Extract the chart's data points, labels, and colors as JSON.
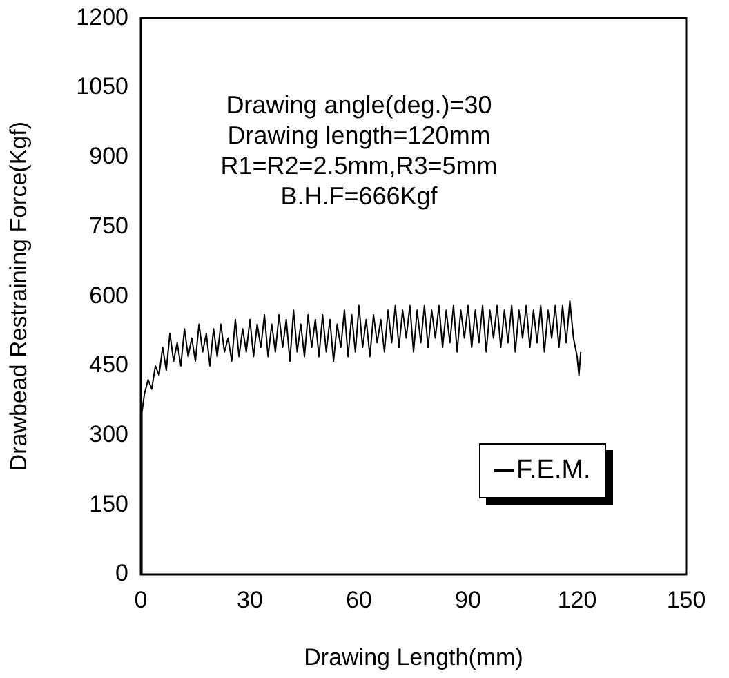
{
  "chart_data": {
    "type": "line",
    "xlabel": "Drawing Length(mm)",
    "ylabel": "Drawbead Restraining Force(Kgf)",
    "annotations": [
      "Drawing angle(deg.)=30",
      "Drawing length=120mm",
      "R1=R2=2.5mm,R3=5mm",
      "B.H.F=666Kgf"
    ],
    "xlim": [
      0,
      150
    ],
    "xticks": [
      0,
      30,
      60,
      90,
      120,
      150
    ],
    "ylim": [
      0,
      1200
    ],
    "yticks": [
      0,
      150,
      300,
      450,
      600,
      750,
      900,
      1050,
      1200
    ],
    "grid": false,
    "legend": "bottom right",
    "marker": "none",
    "line_style": "solid",
    "series": [
      {
        "name": "F.E.M.",
        "color": "#000000",
        "x": [
          0,
          0.3,
          1,
          2,
          3,
          4,
          5,
          6,
          7,
          8,
          9,
          10,
          11,
          12,
          13,
          14,
          15,
          16,
          17,
          18,
          19,
          20,
          21,
          22,
          23,
          24,
          25,
          26,
          27,
          28,
          29,
          30,
          31,
          32,
          33,
          34,
          35,
          36,
          37,
          38,
          39,
          40,
          41,
          42,
          43,
          44,
          45,
          46,
          47,
          48,
          49,
          50,
          51,
          52,
          53,
          54,
          55,
          56,
          57,
          58,
          59,
          60,
          61,
          62,
          63,
          64,
          65,
          66,
          67,
          68,
          69,
          70,
          71,
          72,
          73,
          74,
          75,
          76,
          77,
          78,
          79,
          80,
          81,
          82,
          83,
          84,
          85,
          86,
          87,
          88,
          89,
          90,
          91,
          92,
          93,
          94,
          95,
          96,
          97,
          98,
          99,
          100,
          101,
          102,
          103,
          104,
          105,
          106,
          107,
          108,
          109,
          110,
          111,
          112,
          113,
          114,
          115,
          116,
          117,
          118,
          119,
          120,
          120.5,
          121
        ],
        "values": [
          0,
          350,
          390,
          420,
          400,
          450,
          430,
          490,
          440,
          520,
          460,
          500,
          450,
          530,
          470,
          510,
          460,
          540,
          480,
          520,
          450,
          530,
          470,
          540,
          480,
          510,
          460,
          550,
          470,
          530,
          480,
          550,
          470,
          540,
          490,
          560,
          470,
          540,
          480,
          560,
          490,
          550,
          460,
          570,
          480,
          540,
          470,
          560,
          490,
          550,
          470,
          560,
          480,
          550,
          460,
          540,
          490,
          570,
          470,
          560,
          480,
          580,
          490,
          550,
          470,
          560,
          500,
          550,
          480,
          570,
          500,
          580,
          490,
          570,
          510,
          580,
          480,
          570,
          500,
          580,
          490,
          570,
          510,
          580,
          490,
          570,
          500,
          580,
          480,
          570,
          510,
          580,
          490,
          570,
          500,
          580,
          480,
          570,
          510,
          580,
          490,
          570,
          500,
          580,
          480,
          570,
          510,
          580,
          490,
          570,
          500,
          580,
          480,
          570,
          510,
          580,
          490,
          580,
          500,
          590,
          510,
          470,
          430,
          480
        ]
      }
    ]
  }
}
